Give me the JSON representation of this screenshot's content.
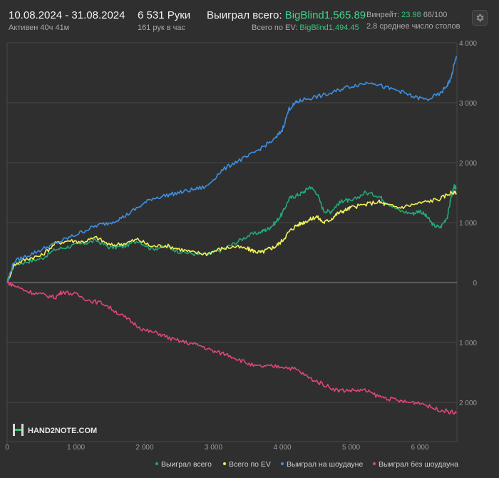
{
  "header": {
    "date_range": "10.08.2024 - 31.08.2024",
    "active_time": "Активен 40ч 41м",
    "hands": "6 531 Руки",
    "hands_per_hour": "161 рук в час",
    "won_total_label": "Выиграл всего:",
    "won_total_value": "BigBlind1,565.89",
    "ev_total_label": "Всего по EV:",
    "ev_total_value": "BigBlind1,494.45",
    "winrate_label": "Винрейт:",
    "winrate_value": "23.98",
    "winrate_sample": "66/100",
    "avg_tables": "2.8 среднее число столов"
  },
  "logo": {
    "text": "HAND2NOTE.COM"
  },
  "colors": {
    "background": "#2f2f2f",
    "grid": "#474747",
    "zero_line": "#8a8a8a",
    "won_total": "#23a878",
    "ev_total": "#f1f05a",
    "showdown": "#3f8fe0",
    "non_showdown": "#e0467a"
  },
  "chart_data": {
    "type": "line",
    "title": "",
    "xlabel": "",
    "ylabel": "",
    "xlim": [
      0,
      6531
    ],
    "ylim": [
      -2200,
      4000
    ],
    "x_ticks": [
      {
        "v": 0,
        "label": "0"
      },
      {
        "v": 1000,
        "label": "1 000"
      },
      {
        "v": 2000,
        "label": "2 000"
      },
      {
        "v": 3000,
        "label": "3 000"
      },
      {
        "v": 4000,
        "label": "4 000"
      },
      {
        "v": 5000,
        "label": "5 000"
      },
      {
        "v": 6000,
        "label": "6 000"
      }
    ],
    "y_ticks": [
      {
        "v": 4000,
        "label": "4 000"
      },
      {
        "v": 3000,
        "label": "3 000"
      },
      {
        "v": 2000,
        "label": "2 000"
      },
      {
        "v": 1000,
        "label": "1 000"
      },
      {
        "v": 0,
        "label": "0"
      },
      {
        "v": -1000,
        "label": "1 000"
      },
      {
        "v": -2000,
        "label": "2 000"
      }
    ],
    "grid": true,
    "legend_position": "bottom-right",
    "series": [
      {
        "name": "Выиграл всего",
        "color": "#23a878",
        "points": [
          [
            0,
            0
          ],
          [
            100,
            300
          ],
          [
            300,
            350
          ],
          [
            500,
            400
          ],
          [
            700,
            550
          ],
          [
            900,
            600
          ],
          [
            1100,
            650
          ],
          [
            1300,
            700
          ],
          [
            1500,
            580
          ],
          [
            1700,
            600
          ],
          [
            1900,
            700
          ],
          [
            2100,
            560
          ],
          [
            2300,
            600
          ],
          [
            2500,
            520
          ],
          [
            2700,
            480
          ],
          [
            2900,
            460
          ],
          [
            3100,
            540
          ],
          [
            3300,
            650
          ],
          [
            3500,
            780
          ],
          [
            3700,
            850
          ],
          [
            3800,
            900
          ],
          [
            3900,
            1000
          ],
          [
            4000,
            1150
          ],
          [
            4100,
            1400
          ],
          [
            4200,
            1450
          ],
          [
            4300,
            1500
          ],
          [
            4400,
            1600
          ],
          [
            4500,
            1500
          ],
          [
            4600,
            1200
          ],
          [
            4700,
            1180
          ],
          [
            4800,
            1300
          ],
          [
            4900,
            1380
          ],
          [
            5000,
            1350
          ],
          [
            5200,
            1500
          ],
          [
            5400,
            1450
          ],
          [
            5500,
            1350
          ],
          [
            5700,
            1200
          ],
          [
            5900,
            1150
          ],
          [
            6000,
            1200
          ],
          [
            6100,
            1100
          ],
          [
            6200,
            950
          ],
          [
            6300,
            920
          ],
          [
            6400,
            1100
          ],
          [
            6450,
            1400
          ],
          [
            6500,
            1600
          ],
          [
            6531,
            1570
          ]
        ]
      },
      {
        "name": "Всего по EV",
        "color": "#f1f05a",
        "points": [
          [
            0,
            0
          ],
          [
            100,
            300
          ],
          [
            300,
            400
          ],
          [
            500,
            450
          ],
          [
            700,
            650
          ],
          [
            900,
            700
          ],
          [
            1100,
            680
          ],
          [
            1300,
            750
          ],
          [
            1500,
            620
          ],
          [
            1700,
            650
          ],
          [
            1900,
            720
          ],
          [
            2100,
            600
          ],
          [
            2300,
            620
          ],
          [
            2500,
            560
          ],
          [
            2700,
            500
          ],
          [
            2900,
            480
          ],
          [
            3100,
            560
          ],
          [
            3300,
            600
          ],
          [
            3500,
            560
          ],
          [
            3600,
            520
          ],
          [
            3700,
            500
          ],
          [
            3800,
            560
          ],
          [
            3900,
            600
          ],
          [
            4000,
            700
          ],
          [
            4100,
            850
          ],
          [
            4200,
            950
          ],
          [
            4300,
            1000
          ],
          [
            4400,
            1050
          ],
          [
            4500,
            1100
          ],
          [
            4600,
            1000
          ],
          [
            4700,
            1050
          ],
          [
            4800,
            1150
          ],
          [
            4900,
            1200
          ],
          [
            5000,
            1250
          ],
          [
            5200,
            1300
          ],
          [
            5400,
            1350
          ],
          [
            5500,
            1300
          ],
          [
            5700,
            1250
          ],
          [
            5900,
            1300
          ],
          [
            6100,
            1350
          ],
          [
            6300,
            1400
          ],
          [
            6450,
            1500
          ],
          [
            6531,
            1490
          ]
        ]
      },
      {
        "name": "Выиграл на шоудауне",
        "color": "#3f8fe0",
        "points": [
          [
            0,
            0
          ],
          [
            100,
            350
          ],
          [
            300,
            450
          ],
          [
            500,
            550
          ],
          [
            700,
            650
          ],
          [
            900,
            750
          ],
          [
            1100,
            850
          ],
          [
            1300,
            950
          ],
          [
            1500,
            1000
          ],
          [
            1700,
            1100
          ],
          [
            1900,
            1250
          ],
          [
            2100,
            1400
          ],
          [
            2300,
            1450
          ],
          [
            2500,
            1500
          ],
          [
            2700,
            1550
          ],
          [
            2900,
            1600
          ],
          [
            3100,
            1850
          ],
          [
            3300,
            2000
          ],
          [
            3500,
            2100
          ],
          [
            3700,
            2250
          ],
          [
            3900,
            2400
          ],
          [
            4000,
            2550
          ],
          [
            4100,
            2900
          ],
          [
            4200,
            3000
          ],
          [
            4300,
            3050
          ],
          [
            4500,
            3100
          ],
          [
            4700,
            3150
          ],
          [
            4900,
            3250
          ],
          [
            5100,
            3300
          ],
          [
            5300,
            3350
          ],
          [
            5500,
            3250
          ],
          [
            5700,
            3200
          ],
          [
            5900,
            3100
          ],
          [
            6100,
            3050
          ],
          [
            6300,
            3150
          ],
          [
            6400,
            3300
          ],
          [
            6450,
            3400
          ],
          [
            6531,
            3780
          ]
        ]
      },
      {
        "name": "Выиграл без шоудауна",
        "color": "#e0467a",
        "points": [
          [
            0,
            0
          ],
          [
            100,
            -50
          ],
          [
            300,
            -150
          ],
          [
            500,
            -200
          ],
          [
            700,
            -250
          ],
          [
            800,
            -150
          ],
          [
            1000,
            -200
          ],
          [
            1200,
            -300
          ],
          [
            1400,
            -350
          ],
          [
            1600,
            -500
          ],
          [
            1800,
            -650
          ],
          [
            2000,
            -800
          ],
          [
            2200,
            -850
          ],
          [
            2400,
            -950
          ],
          [
            2600,
            -1000
          ],
          [
            2800,
            -1050
          ],
          [
            3000,
            -1150
          ],
          [
            3200,
            -1200
          ],
          [
            3400,
            -1300
          ],
          [
            3600,
            -1400
          ],
          [
            3800,
            -1400
          ],
          [
            4000,
            -1400
          ],
          [
            4200,
            -1450
          ],
          [
            4400,
            -1600
          ],
          [
            4600,
            -1700
          ],
          [
            4800,
            -1800
          ],
          [
            5000,
            -1800
          ],
          [
            5200,
            -1800
          ],
          [
            5400,
            -1900
          ],
          [
            5600,
            -1950
          ],
          [
            5800,
            -2000
          ],
          [
            6000,
            -2000
          ],
          [
            6200,
            -2100
          ],
          [
            6400,
            -2150
          ],
          [
            6531,
            -2180
          ]
        ]
      }
    ]
  }
}
